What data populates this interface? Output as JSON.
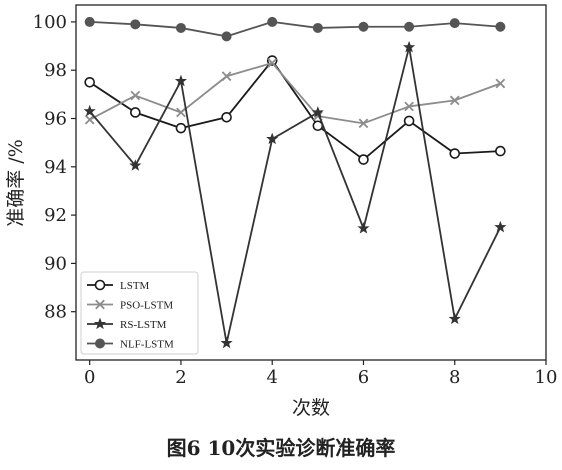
{
  "caption": "图6  10次实验诊断准确率",
  "chart_data": {
    "type": "line",
    "title": "",
    "xlabel": "次数",
    "ylabel": "准确率 /%",
    "xlim": [
      -0.3,
      10
    ],
    "ylim": [
      86.0,
      100.7
    ],
    "xticks": [
      0,
      2,
      4,
      6,
      8,
      10
    ],
    "yticks": [
      88,
      90,
      92,
      94,
      96,
      98,
      100
    ],
    "grid": false,
    "legend_position": "lower-left",
    "x": [
      0,
      1,
      2,
      3,
      4,
      5,
      6,
      7,
      8,
      9
    ],
    "series": [
      {
        "name": "LSTM",
        "marker": "open-circle",
        "color": "#1a1a1a",
        "values": [
          97.5,
          96.25,
          95.6,
          96.05,
          98.4,
          95.7,
          94.3,
          95.9,
          94.55,
          94.65
        ]
      },
      {
        "name": "PSO-LSTM",
        "marker": "x",
        "color": "#8c8c8c",
        "values": [
          95.95,
          96.95,
          96.25,
          97.75,
          98.3,
          96.1,
          95.8,
          96.5,
          96.75,
          97.45
        ]
      },
      {
        "name": "RS-LSTM",
        "marker": "star",
        "color": "#333333",
        "values": [
          96.3,
          94.05,
          97.55,
          86.7,
          95.15,
          96.25,
          91.45,
          98.95,
          87.7,
          91.5
        ]
      },
      {
        "name": "NLF-LSTM",
        "marker": "filled-circle",
        "color": "#555555",
        "values": [
          100.0,
          99.9,
          99.75,
          99.4,
          100.0,
          99.75,
          99.8,
          99.8,
          99.95,
          99.8
        ]
      }
    ]
  }
}
